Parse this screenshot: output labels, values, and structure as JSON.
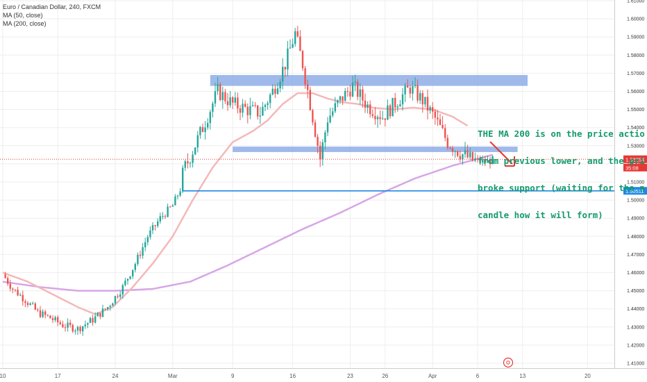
{
  "legend": {
    "title": "Euro / Canadian Dollar, 240, FXCM",
    "ma50": "MA (50, close)",
    "ma200": "MA (200, close)"
  },
  "annotation": {
    "lines": [
      "THE MA 200 is on the price actio",
      "from previous lower, and the pri",
      "broke support (waiting for the n",
      "candle how it will form)"
    ],
    "color": "#149a6e"
  },
  "colors": {
    "up": "#26a69a",
    "down": "#ef5350",
    "ma50": "#f4b8b8",
    "ma200": "#d7a6e6",
    "zone": "#7fa3e3",
    "support_line": "#1e88e5",
    "arrow": "#e53935",
    "current_price": "#e53935",
    "grid": "#eeeeee"
  },
  "axis": {
    "y_ticks": [
      "1.61000",
      "1.60000",
      "1.59000",
      "1.58000",
      "1.57000",
      "1.56000",
      "1.55000",
      "1.54000",
      "1.53000",
      "1.52000",
      "1.51000",
      "1.50000",
      "1.49000",
      "1.48000",
      "1.47000",
      "1.46000",
      "1.45000",
      "1.44000",
      "1.43000",
      "1.42000",
      "1.41000"
    ],
    "x_ticks": [
      "10",
      "17",
      "24",
      "Mar",
      "9",
      "16",
      "23",
      "26",
      "Apr",
      "6",
      "13",
      "20"
    ],
    "current_price_label": "1.52254",
    "countdown_label": "35:08",
    "support_price_label": "1.50511"
  },
  "chart_data": {
    "type": "candlestick",
    "title": "Euro / Canadian Dollar, 240, FXCM",
    "xlabel": "",
    "ylabel": "",
    "ylim": [
      1.406,
      1.612
    ],
    "x_tick_labels": [
      "10",
      "17",
      "24",
      "Mar",
      "9",
      "16",
      "23",
      "26",
      "Apr",
      "6",
      "13",
      "20"
    ],
    "series": [
      {
        "name": "MA (50, close)",
        "type": "line"
      },
      {
        "name": "MA (200, close)",
        "type": "line"
      }
    ],
    "price_path": [
      [
        0,
        1.459
      ],
      [
        4,
        1.451
      ],
      [
        9,
        1.445
      ],
      [
        14,
        1.438
      ],
      [
        19,
        1.435
      ],
      [
        24,
        1.431
      ],
      [
        30,
        1.429
      ],
      [
        36,
        1.434
      ],
      [
        42,
        1.441
      ],
      [
        48,
        1.452
      ],
      [
        53,
        1.465
      ],
      [
        58,
        1.48
      ],
      [
        63,
        1.49
      ],
      [
        68,
        1.497
      ],
      [
        71,
        1.506
      ],
      [
        72,
        1.516
      ],
      [
        74,
        1.521
      ],
      [
        80,
        1.54
      ],
      [
        86,
        1.56
      ],
      [
        92,
        1.553
      ],
      [
        98,
        1.55
      ],
      [
        103,
        1.548
      ],
      [
        108,
        1.56
      ],
      [
        113,
        1.575
      ],
      [
        117,
        1.592
      ],
      [
        120,
        1.575
      ],
      [
        124,
        1.546
      ],
      [
        127,
        1.523
      ],
      [
        130,
        1.545
      ],
      [
        135,
        1.555
      ],
      [
        140,
        1.563
      ],
      [
        146,
        1.552
      ],
      [
        152,
        1.546
      ],
      [
        158,
        1.555
      ],
      [
        163,
        1.562
      ],
      [
        168,
        1.555
      ],
      [
        173,
        1.545
      ],
      [
        178,
        1.532
      ],
      [
        183,
        1.526
      ],
      [
        188,
        1.522
      ],
      [
        193,
        1.521
      ],
      [
        196,
        1.522
      ]
    ],
    "ma50": [
      [
        0,
        1.46
      ],
      [
        10,
        1.455
      ],
      [
        20,
        1.448
      ],
      [
        30,
        1.441
      ],
      [
        37,
        1.437
      ],
      [
        44,
        1.441
      ],
      [
        52,
        1.452
      ],
      [
        60,
        1.465
      ],
      [
        68,
        1.48
      ],
      [
        76,
        1.5
      ],
      [
        84,
        1.518
      ],
      [
        92,
        1.532
      ],
      [
        100,
        1.538
      ],
      [
        106,
        1.544
      ],
      [
        112,
        1.553
      ],
      [
        118,
        1.559
      ],
      [
        124,
        1.559
      ],
      [
        130,
        1.556
      ],
      [
        136,
        1.554
      ],
      [
        142,
        1.553
      ],
      [
        148,
        1.551
      ],
      [
        156,
        1.55
      ],
      [
        164,
        1.551
      ],
      [
        172,
        1.55
      ],
      [
        180,
        1.546
      ],
      [
        186,
        1.541
      ]
    ],
    "ma200": [
      [
        0,
        1.455
      ],
      [
        15,
        1.452
      ],
      [
        30,
        1.45
      ],
      [
        45,
        1.45
      ],
      [
        60,
        1.451
      ],
      [
        75,
        1.455
      ],
      [
        90,
        1.464
      ],
      [
        105,
        1.474
      ],
      [
        120,
        1.484
      ],
      [
        135,
        1.493
      ],
      [
        150,
        1.503
      ],
      [
        165,
        1.512
      ],
      [
        180,
        1.519
      ],
      [
        196,
        1.525
      ]
    ],
    "zones": [
      {
        "from_bar": 83,
        "to_bar": 210,
        "low": 1.563,
        "high": 1.569
      },
      {
        "from_bar": 92,
        "to_bar": 206,
        "low": 1.5265,
        "high": 1.5295
      }
    ],
    "support_level": 1.50511,
    "support_from_bar": 72,
    "current_price": 1.52254
  }
}
